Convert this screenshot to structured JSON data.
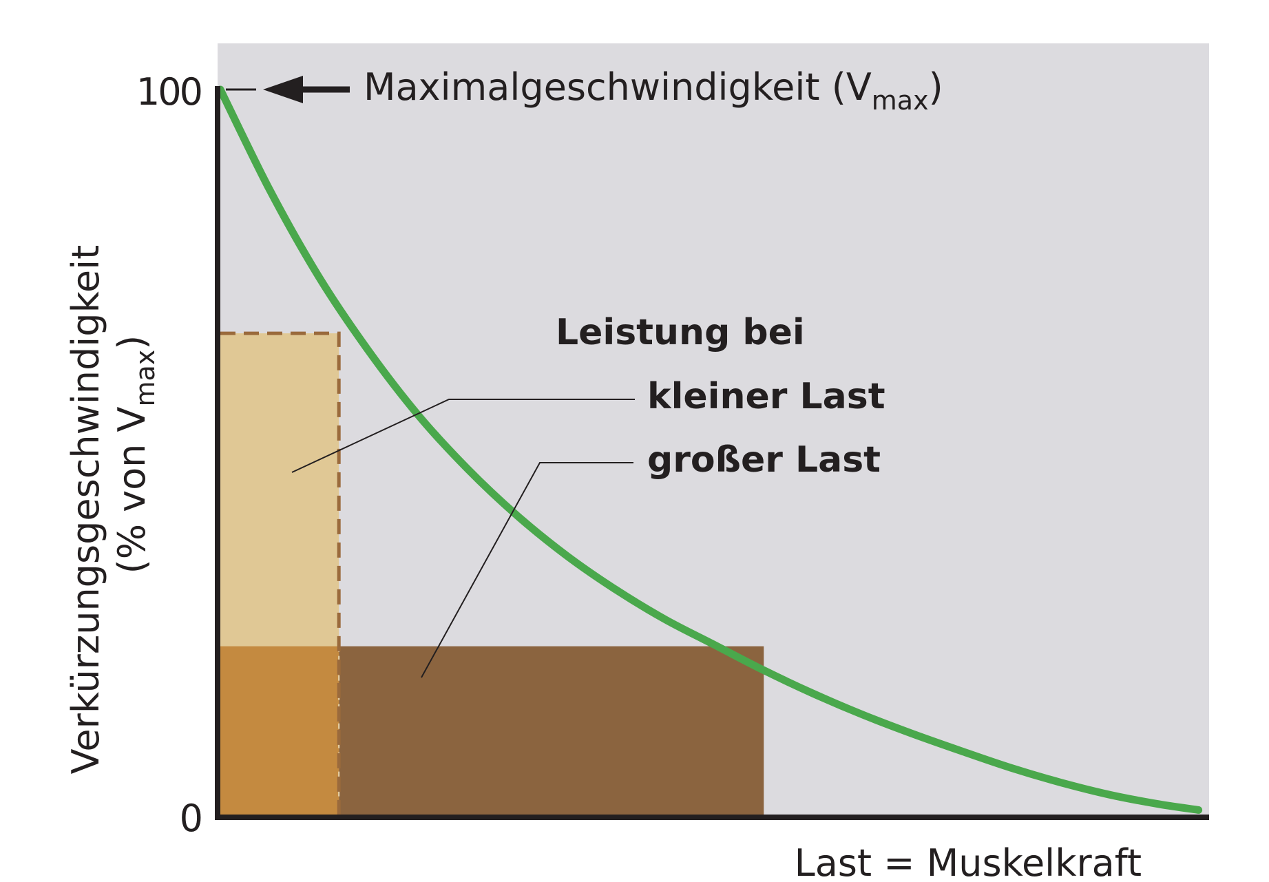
{
  "chart_data": {
    "type": "line",
    "title": "",
    "xlabel": "Last = Muskelkraft",
    "ylabel": {
      "line1": "Verkürzungsgeschwindigkeit",
      "line2_prefix": "(% von V",
      "line2_sub": "max",
      "line2_suffix": ")"
    },
    "xlim": [
      0,
      100
    ],
    "ylim": [
      0,
      100
    ],
    "y_ticks": [
      "0",
      "100"
    ],
    "grid": false,
    "series": [
      {
        "x": [
          0,
          5,
          10,
          15,
          20,
          25,
          30,
          35,
          40,
          45,
          50,
          55,
          60,
          65,
          70,
          75,
          80,
          85,
          90,
          95,
          99
        ],
        "y": [
          100,
          86.2,
          74.2,
          64.1,
          55.3,
          47.9,
          41.5,
          36.0,
          31.3,
          27.2,
          23.7,
          20.2,
          17.0,
          14.1,
          11.5,
          9.1,
          6.8,
          4.8,
          3.1,
          1.8,
          1.0
        ]
      }
    ],
    "regions": [
      {
        "label_ref": "small_load",
        "x": [
          0,
          12
        ],
        "y": [
          0,
          66.5
        ],
        "fill": "#e0c895",
        "border": "dashed"
      },
      {
        "label_ref": "large_load",
        "x": [
          12,
          55
        ],
        "y": [
          0,
          23.5
        ],
        "fill": "#8b643f"
      },
      {
        "label_ref": "overlap",
        "x": [
          0,
          12
        ],
        "y": [
          0,
          23.5
        ],
        "fill": "#c48a40"
      }
    ],
    "annotations": {
      "vmax": {
        "text": "Maximalgeschwindigkeit (V",
        "sub": "max",
        "suffix": ")"
      },
      "power_heading": "Leistung bei",
      "small_load": "kleiner Last",
      "large_load": "großer Last"
    },
    "colors": {
      "curve": "#4aa84c",
      "background": "#dcdbdf",
      "axis": "#231f20",
      "small_load_fill": "#e0c895",
      "large_load_fill": "#8b643f",
      "overlap_fill": "#c48a40",
      "dashed_border": "#9a6a3c"
    }
  }
}
